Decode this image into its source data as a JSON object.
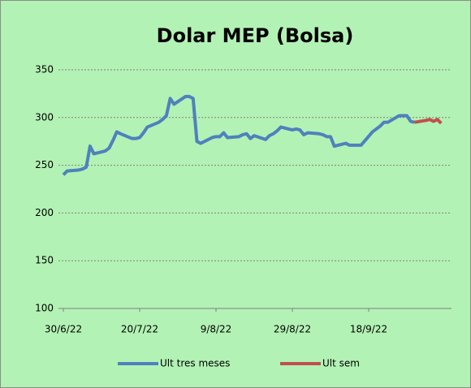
{
  "chart_data": {
    "type": "line",
    "title": "Dolar MEP (Bolsa)",
    "xlim": [
      "30/6/22",
      "8/10/22"
    ],
    "xticks": [
      "30/6/22",
      "20/7/22",
      "9/8/22",
      "29/8/22",
      "18/9/22"
    ],
    "ylim": [
      100,
      350
    ],
    "yticks": [
      100,
      150,
      200,
      250,
      300,
      350
    ],
    "grid": true,
    "legend": "bottom",
    "series": [
      {
        "name": "Ult tres meses",
        "color": "#4f81bd",
        "x": [
          "30/6/22",
          "1/7/22",
          "4/7/22",
          "5/7/22",
          "6/7/22",
          "7/7/22",
          "8/7/22",
          "11/7/22",
          "12/7/22",
          "13/7/22",
          "14/7/22",
          "15/7/22",
          "18/7/22",
          "19/7/22",
          "20/7/22",
          "21/7/22",
          "22/7/22",
          "25/7/22",
          "26/7/22",
          "27/7/22",
          "28/7/22",
          "29/7/22",
          "1/8/22",
          "2/8/22",
          "3/8/22",
          "4/8/22",
          "5/8/22",
          "8/8/22",
          "9/8/22",
          "10/8/22",
          "11/8/22",
          "12/8/22",
          "15/8/22",
          "16/8/22",
          "17/8/22",
          "18/8/22",
          "19/8/22",
          "22/8/22",
          "23/8/22",
          "24/8/22",
          "25/8/22",
          "26/8/22",
          "29/8/22",
          "30/8/22",
          "31/8/22",
          "1/9/22",
          "2/9/22",
          "5/9/22",
          "6/9/22",
          "7/9/22",
          "8/9/22",
          "9/9/22",
          "12/9/22",
          "13/9/22",
          "14/9/22",
          "15/9/22",
          "16/9/22",
          "19/9/22",
          "20/9/22",
          "21/9/22",
          "22/9/22",
          "23/9/22",
          "26/9/22",
          "27/9/22",
          "28/9/22",
          "29/9/22",
          "30/9/22"
        ],
        "values": [
          240,
          244,
          245,
          246,
          248,
          270,
          262,
          265,
          268,
          276,
          285,
          283,
          278,
          278,
          279,
          284,
          290,
          295,
          298,
          302,
          320,
          314,
          322,
          322,
          320,
          275,
          273,
          279,
          280,
          280,
          284,
          279,
          280,
          282,
          283,
          278,
          281,
          277,
          281,
          283,
          286,
          290,
          287,
          288,
          287,
          282,
          284,
          283,
          282,
          280,
          280,
          270,
          273,
          271,
          271,
          271,
          271,
          285,
          288,
          291,
          295,
          295,
          302,
          302,
          302,
          296,
          295
        ]
      },
      {
        "name": "Ult sem",
        "color": "#c0504d",
        "x": [
          "30/9/22",
          "3/10/22",
          "4/10/22",
          "5/10/22",
          "6/10/22",
          "7/10/22"
        ],
        "values": [
          295,
          297,
          298,
          296,
          298,
          294
        ]
      }
    ]
  }
}
